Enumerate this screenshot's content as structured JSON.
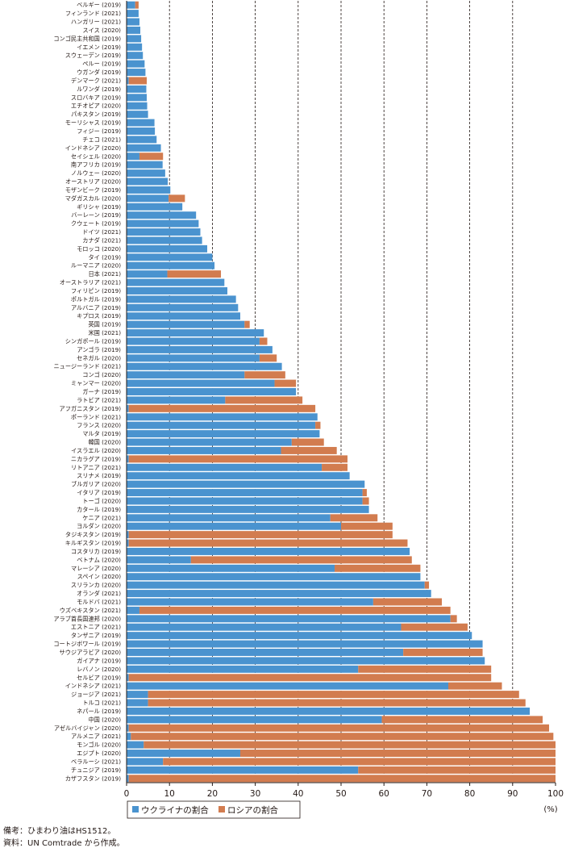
{
  "colors": {
    "ukraine": "#4a93cf",
    "russia": "#d27c4f",
    "axis": "#231815",
    "grid": "#231815"
  },
  "notes": {
    "note1": "備考：ひまわり油はHS1512。",
    "note2": "資料：UN Comtrade から作成。"
  },
  "chart_data": {
    "type": "bar",
    "orientation": "horizontal",
    "stacked": true,
    "unit": "(%)",
    "xlim": [
      0,
      100
    ],
    "xticks": [
      0,
      10,
      20,
      30,
      40,
      50,
      60,
      70,
      80,
      90,
      100
    ],
    "grid": "vertical dashed at 10–90",
    "legend_position": "bottom-left",
    "legend": [
      "ウクライナの割合",
      "ロシアの割合"
    ],
    "categories": [
      "ベルギー (2019)",
      "フィンランド (2021)",
      "ハンガリー (2021)",
      "スイス (2020)",
      "コンゴ民主共和国 (2019)",
      "イエメン (2019)",
      "スウェーデン (2019)",
      "ペルー (2019)",
      "ウガンダ (2019)",
      "デンマーク (2021)",
      "ルワンダ (2019)",
      "スロバキア (2019)",
      "エチオピア (2020)",
      "パキスタン (2019)",
      "モーリシャス (2019)",
      "フィジー (2019)",
      "チェコ (2021)",
      "インドネシア (2020)",
      "セイシェル (2020)",
      "南アフリカ (2019)",
      "ノルウェー (2020)",
      "オーストリア (2020)",
      "モザンビーク (2019)",
      "マダガスカル (2020)",
      "ギリシャ (2019)",
      "バーレーン (2019)",
      "クウェート (2019)",
      "ドイツ (2021)",
      "カナダ (2021)",
      "モロッコ (2020)",
      "タイ (2019)",
      "ルーマニア (2020)",
      "日本 (2021)",
      "オーストラリア (2021)",
      "フィリピン (2019)",
      "ポルトガル (2019)",
      "アルバニア (2019)",
      "キプロス (2019)",
      "英国 (2019)",
      "米国 (2021)",
      "シンガポール (2019)",
      "アンゴラ (2019)",
      "セネガル (2020)",
      "ニュージーランド (2021)",
      "コンゴ (2020)",
      "ミャンマー (2020)",
      "ガーナ (2019)",
      "ラトビア (2021)",
      "アフガニスタン (2019)",
      "ポーランド (2021)",
      "フランス (2020)",
      "マルタ (2019)",
      "韓国 (2020)",
      "イスラエル (2020)",
      "ニカラグア (2019)",
      "リトアニア (2021)",
      "スリナメ (2019)",
      "ブルガリア (2020)",
      "イタリア (2019)",
      "トーゴ (2020)",
      "カタール (2019)",
      "ケニア (2021)",
      "ヨルダン (2020)",
      "タジキスタン (2019)",
      "キルギスタン (2019)",
      "コスタリカ (2019)",
      "ベトナム (2020)",
      "マレーシア (2020)",
      "スペイン (2020)",
      "スリランカ (2020)",
      "オランダ (2021)",
      "モルドバ (2021)",
      "ウズベキスタン (2021)",
      "アラブ首長国連邦 (2020)",
      "エストニア (2021)",
      "タンザニア (2019)",
      "コートジボワール (2019)",
      "サウジアラビア (2020)",
      "ガイアナ (2019)",
      "レバノン (2020)",
      "セルビア (2019)",
      "インドネシア (2021)",
      "ジョージア (2021)",
      "トルコ (2021)",
      "ネパール (2019)",
      "中国 (2020)",
      "アゼルバイジャン (2020)",
      "アルメニア (2021)",
      "モンゴル (2020)",
      "エジプト (2020)",
      "ベラルーシ (2021)",
      "チュニジア (2019)",
      "カザフスタン (2019)"
    ],
    "series": [
      {
        "name": "ウクライナの割合",
        "values": [
          2.0,
          2.8,
          3.0,
          3.2,
          3.4,
          3.6,
          3.8,
          4.2,
          4.4,
          0.5,
          4.6,
          4.7,
          4.8,
          5.0,
          6.5,
          6.6,
          7.0,
          8.0,
          3.0,
          8.4,
          9.0,
          9.6,
          10.2,
          9.8,
          13.0,
          16.2,
          16.8,
          17.2,
          17.6,
          18.8,
          20.0,
          20.5,
          9.5,
          22.8,
          23.5,
          25.5,
          26.0,
          26.5,
          27.5,
          32.0,
          31.0,
          34.0,
          31.0,
          36.2,
          27.5,
          34.5,
          39.5,
          23.0,
          0.5,
          44.5,
          44.0,
          45.0,
          38.5,
          36.0,
          0.5,
          45.5,
          52.0,
          55.5,
          55.0,
          55.0,
          56.5,
          47.5,
          50.0,
          0.5,
          0.5,
          66.0,
          15.0,
          48.5,
          68.5,
          69.5,
          71.0,
          57.5,
          3.0,
          75.5,
          64.0,
          80.5,
          83.0,
          64.5,
          83.5,
          54.0,
          0.5,
          75.0,
          5.0,
          5.0,
          94.0,
          59.5,
          0.5,
          1.0,
          4.0,
          26.5,
          8.5,
          54.0,
          0.5
        ]
      },
      {
        "name": "ロシアの割合",
        "values": [
          0.8,
          0.0,
          0.0,
          0.0,
          0.0,
          0.0,
          0.0,
          0.0,
          0.0,
          4.2,
          0.0,
          0.0,
          0.0,
          0.0,
          0.0,
          0.0,
          0.0,
          0.0,
          5.5,
          0.0,
          0.0,
          0.0,
          0.0,
          3.8,
          0.0,
          0.0,
          0.0,
          0.0,
          0.0,
          0.0,
          0.0,
          0.0,
          12.5,
          0.0,
          0.0,
          0.0,
          0.0,
          0.0,
          1.2,
          0.0,
          1.8,
          0.0,
          4.0,
          0.0,
          9.5,
          5.0,
          0.0,
          18.0,
          43.5,
          0.0,
          1.2,
          0.0,
          7.5,
          13.0,
          51.0,
          6.0,
          0.0,
          0.0,
          1.0,
          1.5,
          0.0,
          11.0,
          12.0,
          61.5,
          65.0,
          0.0,
          51.5,
          20.0,
          0.0,
          1.0,
          0.0,
          16.0,
          72.5,
          1.5,
          15.5,
          0.0,
          0.0,
          18.5,
          0.0,
          31.0,
          84.5,
          12.5,
          86.5,
          88.0,
          0.0,
          37.5,
          98.0,
          98.5,
          96.0,
          73.5,
          91.5,
          46.0,
          99.5
        ]
      }
    ]
  }
}
